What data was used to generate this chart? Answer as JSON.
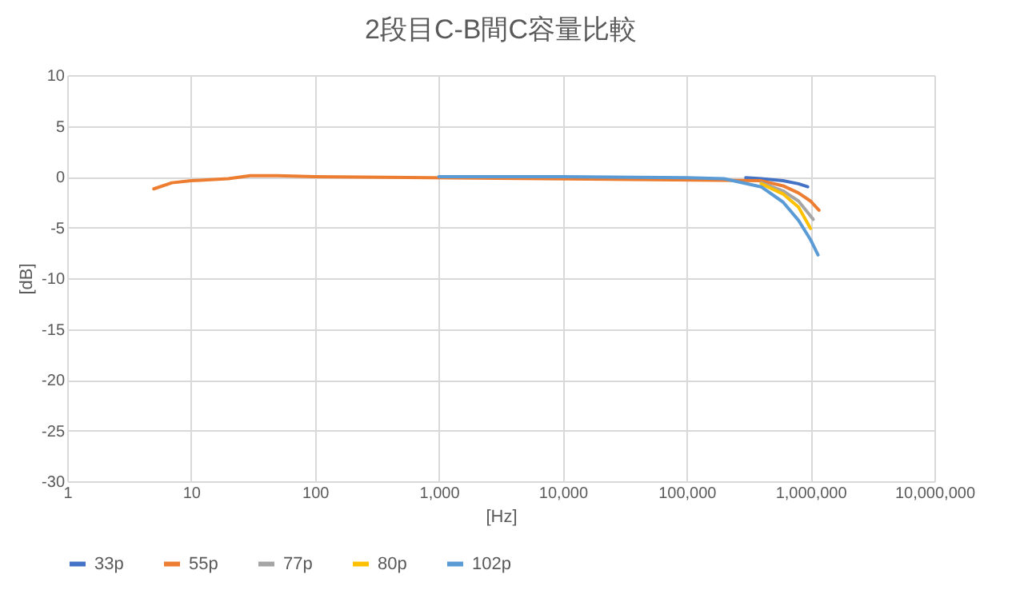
{
  "chart_data": {
    "type": "line",
    "title": "2段目C-B間C容量比較",
    "xlabel": "[Hz]",
    "ylabel": "[dB]",
    "log": "x",
    "grid": true,
    "legend": "bottom",
    "marker": "none",
    "line_style": "solid",
    "xlim": [
      1,
      10000000
    ],
    "xticks": [
      1,
      10,
      100,
      {
        "value": 1000,
        "label": "1,000"
      },
      {
        "value": 10000,
        "label": "10,000"
      },
      {
        "value": 100000,
        "label": "100,000"
      },
      {
        "value": 1000000,
        "label": "1,000,000"
      },
      {
        "value": 10000000,
        "label": "10,000,000"
      }
    ],
    "ylim": [
      -30,
      10
    ],
    "yticks": [
      -30,
      -25,
      -20,
      -15,
      -10,
      -5,
      0,
      5,
      10
    ],
    "series": [
      {
        "name": "33p",
        "color": "#4472c4",
        "x": [
          300000,
          400000,
          600000,
          800000,
          950000
        ],
        "values": [
          -0.1,
          -0.2,
          -0.4,
          -0.7,
          -1.0
        ]
      },
      {
        "name": "55p",
        "color": "#ed7d31",
        "x": [
          5,
          7,
          10,
          20,
          30,
          50,
          100,
          400000,
          600000,
          800000,
          1000000,
          1170000
        ],
        "values": [
          -1.2,
          -0.6,
          -0.4,
          -0.2,
          0.1,
          0.1,
          0,
          -0.4,
          -0.9,
          -1.6,
          -2.4,
          -3.3
        ]
      },
      {
        "name": "77p",
        "color": "#a5a5a5",
        "x": [
          400000,
          600000,
          800000,
          1050000
        ],
        "values": [
          -0.6,
          -1.4,
          -2.4,
          -4.2
        ]
      },
      {
        "name": "80p",
        "color": "#ffc000",
        "x": [
          400000,
          600000,
          800000,
          1000000
        ],
        "values": [
          -0.7,
          -1.7,
          -3.0,
          -5.1
        ]
      },
      {
        "name": "102p",
        "color": "#5b9bd5",
        "x": [
          1000,
          10000,
          100000,
          200000,
          400000,
          600000,
          800000,
          1000000,
          1150000
        ],
        "values": [
          0,
          0,
          -0.1,
          -0.2,
          -1.0,
          -2.5,
          -4.3,
          -6.2,
          -7.7
        ]
      }
    ]
  }
}
